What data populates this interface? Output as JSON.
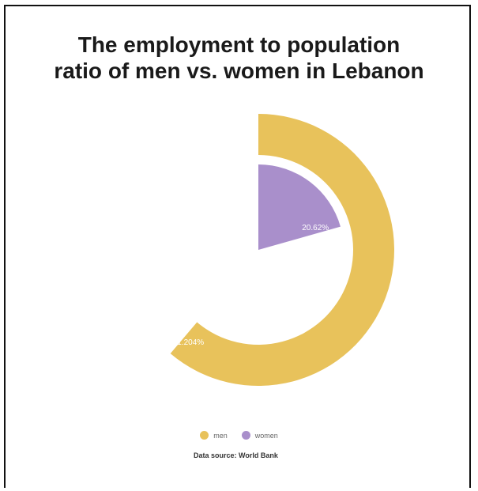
{
  "title_line1": "The employment to population",
  "title_line2": "ratio of men vs. women in Lebanon",
  "chart_data": {
    "type": "pie",
    "subtype": "radial-bar",
    "series": [
      {
        "name": "men",
        "value": 61.204,
        "label": "61.204%",
        "color": "#e8c25b"
      },
      {
        "name": "women",
        "value": 20.62,
        "label": "20.62%",
        "color": "#a98fcb"
      }
    ],
    "max": 100,
    "legend_position": "bottom"
  },
  "legend": [
    {
      "label": "men",
      "color": "#e8c25b"
    },
    {
      "label": "women",
      "color": "#a98fcb"
    }
  ],
  "source": "Data source: World Bank"
}
